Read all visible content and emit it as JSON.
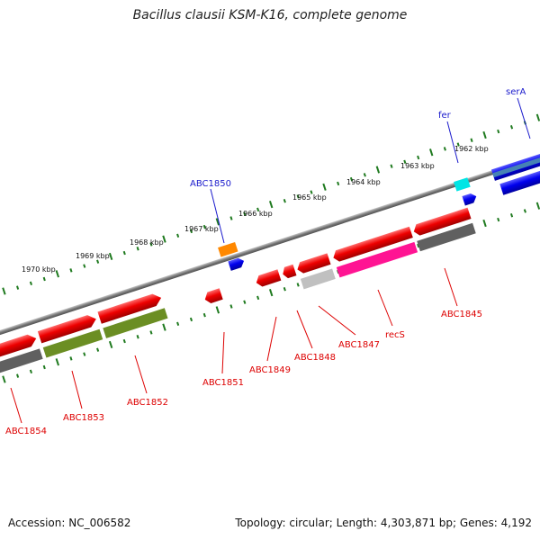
{
  "title": "Bacillus clausii KSM-K16, complete genome",
  "footer": {
    "accession": "Accession: NC_006582",
    "topology": "Topology: circular; Length: 4,303,871 bp; Genes: 4,192"
  },
  "kbp_labels": [
    "1970 kbp",
    "1969 kbp",
    "1968 kbp",
    "1967 kbp",
    "1966 kbp",
    "1965 kbp",
    "1964 kbp",
    "1963 kbp",
    "1962 kbp"
  ],
  "gene_labels": {
    "forward": [
      "ABC1850",
      "fer",
      "serA"
    ],
    "reverse": [
      "ABC1854",
      "ABC1853",
      "ABC1852",
      "ABC1851",
      "ABC1849",
      "ABC1848",
      "ABC1847",
      "recS",
      "ABC1845"
    ]
  },
  "colors": {
    "forward_label": "#1a1acc",
    "reverse_label": "#dd0000",
    "backbone": "#808080",
    "tick": "#1f7a1f",
    "gene_red": "#ee0000",
    "gene_blue": "#0000ee",
    "gene_orange": "#ff8800",
    "gene_cyan": "#00e5e5",
    "cog_olive": "#6b8e23",
    "cog_magenta": "#ff1493",
    "cog_gray": "#606060",
    "cog_steel": "#4682b4"
  }
}
